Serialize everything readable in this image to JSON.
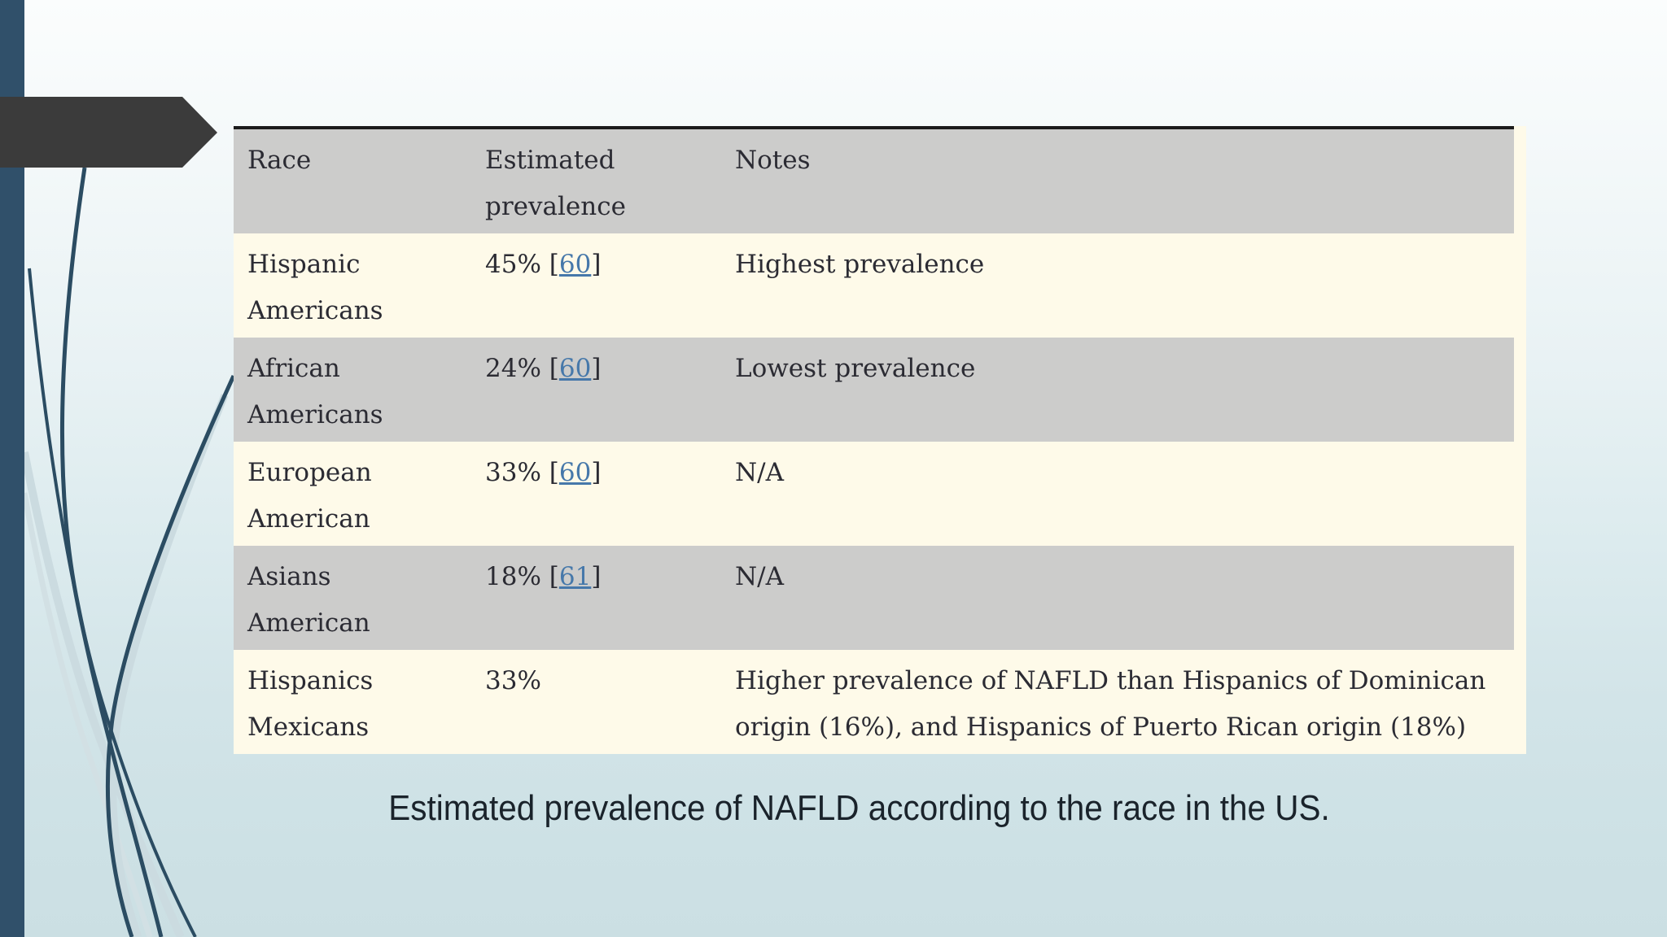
{
  "caption": "Estimated prevalence of NAFLD according to the race in the US.",
  "table": {
    "columns": [
      "Race",
      "Estimated prevalence",
      "Notes"
    ],
    "header": {
      "race_lines": [
        "Race"
      ],
      "prevalence_lines": [
        "Estimated",
        "prevalence"
      ],
      "notes_lines": [
        "Notes"
      ]
    },
    "rows": [
      {
        "race_lines": [
          "Hispanic",
          "Americans"
        ],
        "prevalence": "45%",
        "ref": "60",
        "notes_lines": [
          "Highest prevalence"
        ]
      },
      {
        "race_lines": [
          "African",
          "Americans"
        ],
        "prevalence": "24%",
        "ref": "60",
        "notes_lines": [
          "Lowest prevalence"
        ]
      },
      {
        "race_lines": [
          "European",
          "American"
        ],
        "prevalence": "33%",
        "ref": "60",
        "notes_lines": [
          "N/A"
        ]
      },
      {
        "race_lines": [
          "Asians",
          "American"
        ],
        "prevalence": "18%",
        "ref": "61",
        "notes_lines": [
          "N/A"
        ]
      },
      {
        "race_lines": [
          "Hispanics",
          "Mexicans"
        ],
        "prevalence": "33%",
        "ref": null,
        "notes_lines": [
          "Higher prevalence of NAFLD than Hispanics of Dominican",
          "origin (16%), and Hispanics of Puerto Rican origin (18%)"
        ]
      }
    ]
  },
  "colors": {
    "slide_bg_top": "#fbfdfd",
    "slide_bg_bottom": "#cbdfe3",
    "sidebar_bar": "#30506a",
    "arrow": "#3b3b3b",
    "row_gray": "#cccccb",
    "row_cream": "#fefae9",
    "table_top_border": "#1b1b1b",
    "table_text": "#2b2b33",
    "reference_link": "#4678aa",
    "caption_text": "#1a232b",
    "curve_dark": "#2b4c62",
    "curve_light": "#cbdbe0"
  }
}
